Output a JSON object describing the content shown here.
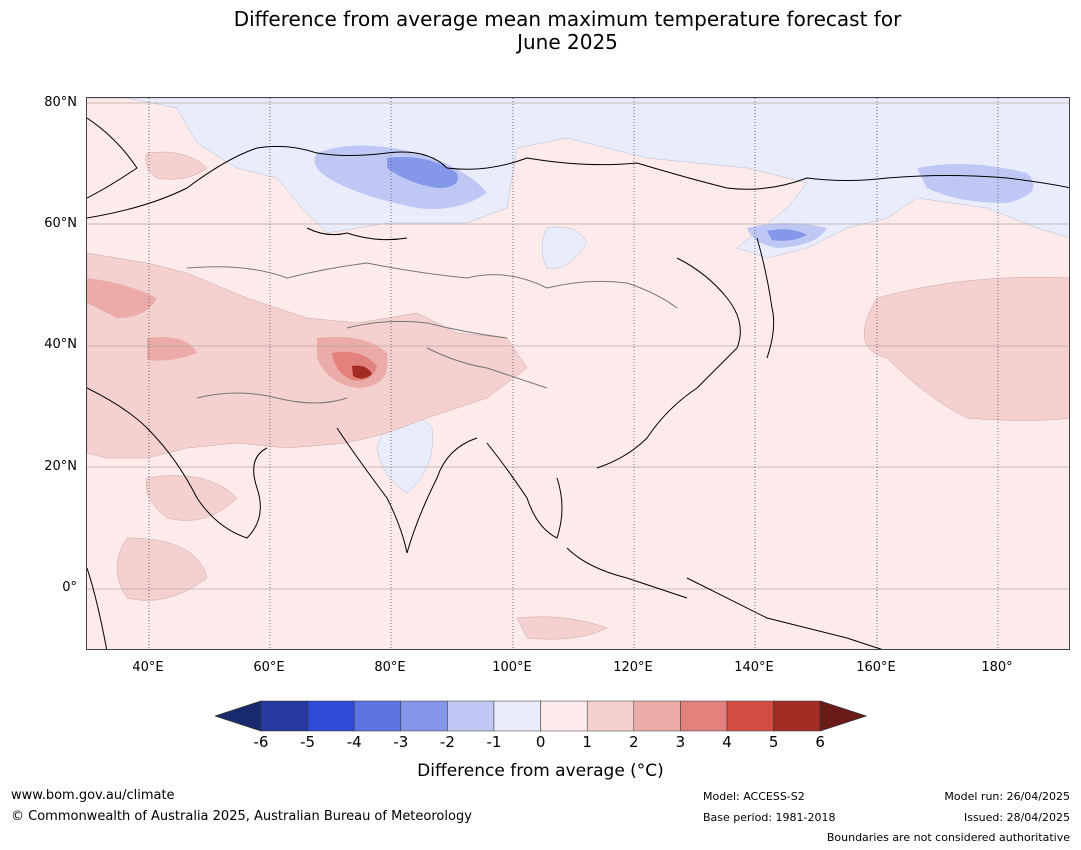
{
  "title": {
    "line1": "Difference from average mean maximum temperature forecast for",
    "line2": "June 2025"
  },
  "map": {
    "lat_labels": [
      "80°N",
      "60°N",
      "40°N",
      "20°N",
      "0°"
    ],
    "lon_labels": [
      "40°E",
      "60°E",
      "80°E",
      "100°E",
      "120°E",
      "140°E",
      "160°E",
      "180°"
    ]
  },
  "colorbar": {
    "ticks": [
      "-6",
      "-5",
      "-4",
      "-3",
      "-2",
      "-1",
      "0",
      "1",
      "2",
      "3",
      "4",
      "5",
      "6"
    ],
    "colors": [
      "#26399f",
      "#2e4bd6",
      "#5b74e0",
      "#8497e8",
      "#bfc8f4",
      "#e9edfb",
      "#fcebea",
      "#f4d1cf",
      "#ebaca9",
      "#e3817c",
      "#d24c43",
      "#a42b24"
    ],
    "extend_low_color": "#1a2a6e",
    "extend_high_color": "#6b1b17",
    "label": "Difference from average ($^\\circ$C)",
    "label_display": "Difference from average (°C)"
  },
  "footer": {
    "website": "www.bom.gov.au/climate",
    "copyright": "© Commonwealth of Australia 2025, Australian Bureau of Meteorology",
    "model": "Model: ACCESS-S2",
    "base_period": "Base period: 1981-2018",
    "model_run": "Model run: 26/04/2025",
    "issued": "Issued: 28/04/2025",
    "disclaimer": "Boundaries are not considered authoritative"
  }
}
